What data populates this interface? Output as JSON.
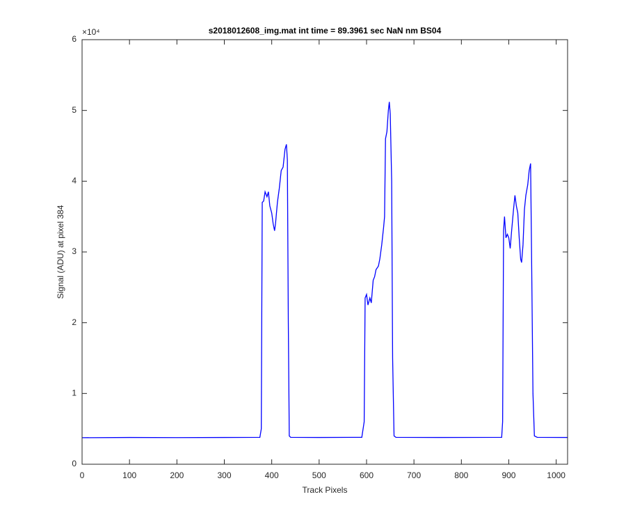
{
  "chart_data": {
    "type": "line",
    "title": "s2018012608_img.mat int time = 89.3961 sec  NaN nm BS04",
    "x_label": "Track Pixels",
    "y_label": "Signal (ADU) at pixel 384",
    "y_exponent": "×10⁴",
    "xlim": [
      0,
      1024
    ],
    "ylim": [
      0,
      6
    ],
    "xticks": [
      0,
      100,
      200,
      300,
      400,
      500,
      600,
      700,
      800,
      900,
      1000
    ],
    "yticks": [
      0,
      1,
      2,
      3,
      4,
      5,
      6
    ],
    "series": [
      {
        "color": "#0000ff",
        "x": [
          0,
          100,
          200,
          300,
          375,
          378,
          380,
          383,
          386,
          390,
          393,
          396,
          400,
          403,
          406,
          408,
          412,
          416,
          420,
          424,
          428,
          431,
          433,
          435,
          437,
          440,
          500,
          590,
          595,
          597,
          600,
          603,
          607,
          610,
          614,
          617,
          620,
          625,
          628,
          632,
          636,
          638,
          640,
          643,
          646,
          648,
          650,
          653,
          655,
          658,
          662,
          750,
          885,
          887,
          889,
          891,
          894,
          897,
          900,
          903,
          906,
          910,
          913,
          916,
          919,
          922,
          925,
          927,
          930,
          933,
          936,
          940,
          943,
          946,
          948,
          951,
          954,
          960,
          1024
        ],
        "values": [
          0.375,
          0.378,
          0.376,
          0.378,
          0.38,
          0.5,
          3.7,
          3.72,
          3.85,
          3.78,
          3.85,
          3.65,
          3.55,
          3.4,
          3.3,
          3.4,
          3.7,
          3.9,
          4.15,
          4.2,
          4.45,
          4.52,
          4.3,
          2.0,
          0.4,
          0.38,
          0.378,
          0.38,
          0.6,
          2.35,
          2.4,
          2.25,
          2.35,
          2.28,
          2.6,
          2.65,
          2.75,
          2.8,
          2.9,
          3.1,
          3.35,
          3.5,
          4.6,
          4.7,
          5.0,
          5.12,
          4.95,
          4.0,
          1.5,
          0.4,
          0.38,
          0.378,
          0.38,
          0.6,
          3.3,
          3.5,
          3.2,
          3.25,
          3.2,
          3.05,
          3.3,
          3.6,
          3.8,
          3.65,
          3.55,
          3.2,
          2.9,
          2.85,
          3.1,
          3.6,
          3.8,
          3.95,
          4.15,
          4.25,
          3.0,
          1.0,
          0.4,
          0.38,
          0.378
        ]
      }
    ]
  }
}
